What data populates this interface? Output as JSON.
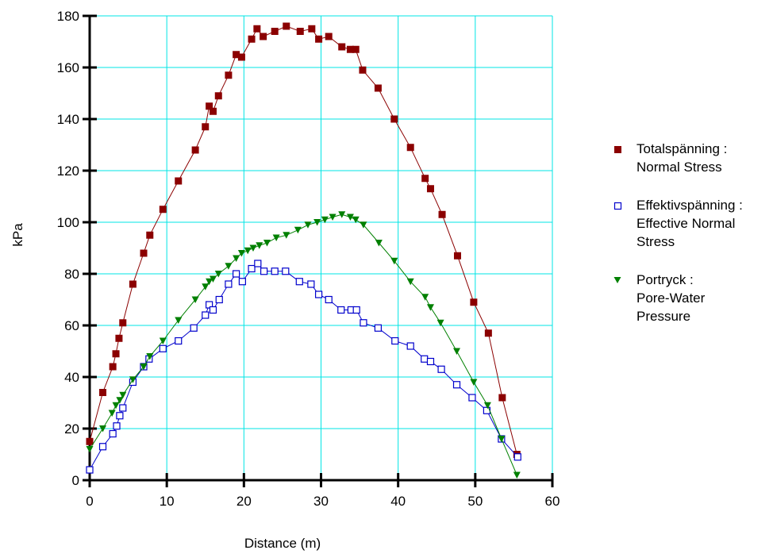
{
  "chart_data": {
    "type": "scatter",
    "xlabel": "Distance (m)",
    "ylabel": "kPa",
    "xlim": [
      0,
      60
    ],
    "ylim": [
      0,
      180
    ],
    "xticks": [
      "0",
      "10",
      "20",
      "30",
      "40",
      "50",
      "60"
    ],
    "yticks": [
      "0",
      "20",
      "40",
      "60",
      "80",
      "100",
      "120",
      "140",
      "160",
      "180"
    ],
    "grid": true,
    "grid_color": "#00e5e5",
    "legend_position": "right",
    "series": [
      {
        "name_lines": [
          "Totalspänning :",
          "Normal Stress"
        ],
        "color": "#8b0000",
        "marker": "filled-square",
        "x": [
          0,
          1.7,
          3.0,
          3.4,
          3.8,
          4.3,
          5.6,
          7.0,
          7.8,
          9.5,
          11.5,
          13.7,
          15.0,
          15.5,
          16.0,
          16.7,
          18.0,
          19.0,
          19.7,
          21.0,
          21.7,
          22.5,
          24.0,
          25.5,
          27.3,
          28.8,
          29.7,
          31.0,
          32.7,
          33.8,
          34.5,
          35.4,
          37.4,
          39.5,
          41.6,
          43.5,
          44.2,
          45.7,
          47.7,
          49.8,
          51.7,
          53.5,
          55.4
        ],
        "y": [
          15,
          34,
          44,
          49,
          55,
          61,
          76,
          88,
          95,
          105,
          116,
          128,
          137,
          145,
          143,
          149,
          157,
          165,
          164,
          171,
          175,
          172,
          174,
          176,
          174,
          175,
          171,
          172,
          168,
          167,
          167,
          159,
          152,
          140,
          129,
          117,
          113,
          103,
          87,
          69,
          57,
          32,
          10
        ]
      },
      {
        "name_lines": [
          "Effektivspänning :",
          "Effective Normal",
          "Stress"
        ],
        "color": "#0000cc",
        "marker": "open-square",
        "x": [
          0,
          1.7,
          3.0,
          3.5,
          3.9,
          4.3,
          5.6,
          7.0,
          7.7,
          9.5,
          11.5,
          13.5,
          15.0,
          15.5,
          16.0,
          16.8,
          18.0,
          19.0,
          19.8,
          21.0,
          21.8,
          22.6,
          24.0,
          25.4,
          27.2,
          28.7,
          29.7,
          31.0,
          32.6,
          33.9,
          34.6,
          35.5,
          37.4,
          39.6,
          41.6,
          43.4,
          44.2,
          45.6,
          47.6,
          49.6,
          51.5,
          53.4,
          55.5
        ],
        "y": [
          4,
          13,
          18,
          21,
          25,
          28,
          38,
          44,
          47,
          51,
          54,
          59,
          64,
          68,
          66,
          70,
          76,
          80,
          77,
          82,
          84,
          81,
          81,
          81,
          77,
          76,
          72,
          70,
          66,
          66,
          66,
          61,
          59,
          54,
          52,
          47,
          46,
          43,
          37,
          32,
          27,
          16,
          9
        ]
      },
      {
        "name_lines": [
          "Portryck :",
          "Pore-Water",
          "Pressure"
        ],
        "color": "#008000",
        "marker": "filled-triangle-down",
        "x": [
          0,
          1.7,
          2.9,
          3.4,
          3.9,
          4.3,
          5.6,
          7.0,
          7.8,
          9.5,
          11.5,
          13.7,
          15.0,
          15.5,
          16.0,
          16.7,
          18.0,
          19.0,
          19.7,
          20.5,
          21.2,
          22.0,
          23.0,
          24.2,
          25.5,
          27.0,
          28.3,
          29.5,
          30.5,
          31.5,
          32.7,
          33.8,
          34.5,
          35.5,
          37.5,
          39.5,
          41.6,
          43.5,
          44.2,
          45.5,
          47.6,
          49.8,
          51.6,
          53.4,
          55.4
        ],
        "y": [
          12,
          20,
          26,
          29,
          31,
          33,
          39,
          44,
          48,
          54,
          62,
          70,
          75,
          77,
          78,
          80,
          83,
          86,
          88,
          89,
          90,
          91,
          92,
          94,
          95,
          97,
          99,
          100,
          101,
          102,
          103,
          102,
          101,
          99,
          92,
          85,
          77,
          71,
          67,
          61,
          50,
          38,
          29,
          16,
          2
        ]
      }
    ]
  }
}
